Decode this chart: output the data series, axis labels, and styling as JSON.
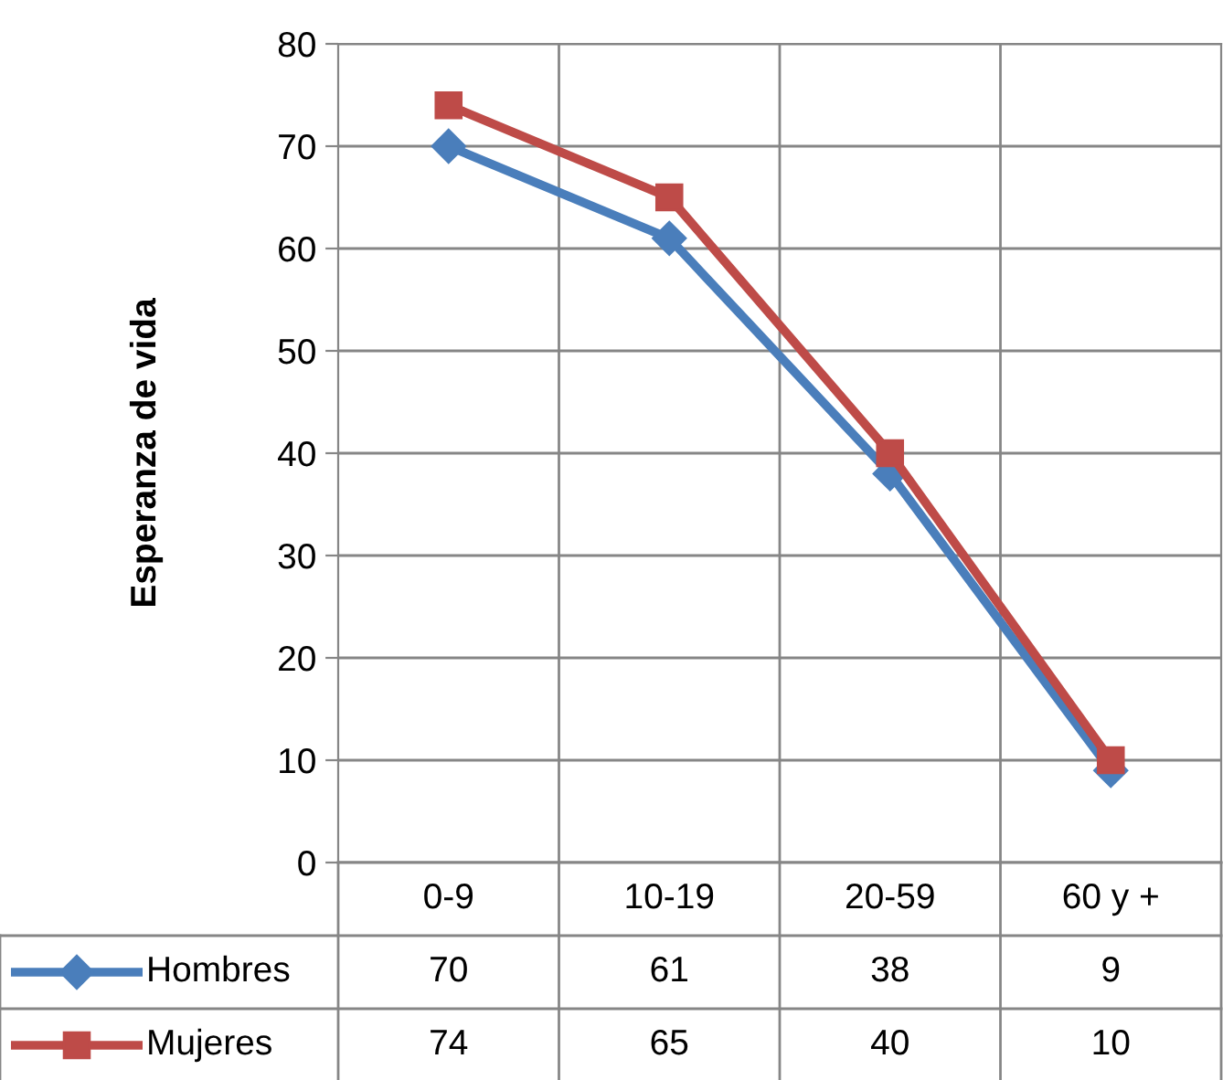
{
  "chart_data": {
    "type": "line",
    "ylabel": "Esperanza de vida",
    "categories": [
      "0-9",
      "10-19",
      "20-59",
      "60 y +"
    ],
    "series": [
      {
        "name": "Hombres",
        "color": "#4a7ebb",
        "marker": "diamond",
        "values": [
          70,
          61,
          38,
          9
        ]
      },
      {
        "name": "Mujeres",
        "color": "#be4b48",
        "marker": "square",
        "values": [
          74,
          65,
          40,
          10
        ]
      }
    ],
    "ylim": [
      0,
      80
    ],
    "yticks": [
      0,
      10,
      20,
      30,
      40,
      50,
      60,
      70,
      80
    ],
    "grid": "y",
    "legend": "bottom",
    "data_labels": true,
    "line_style": "solid"
  }
}
